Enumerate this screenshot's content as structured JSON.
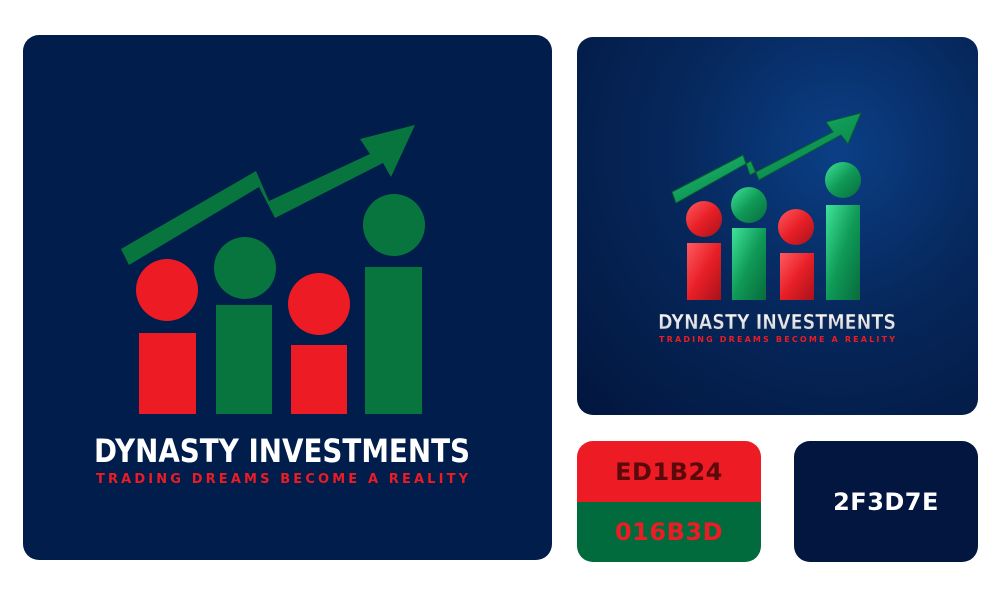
{
  "brand": {
    "name": "DYNASTY INVESTMENTS",
    "tagline": "TRADING DREAMS BECOME A REALITY"
  },
  "mockup": {
    "name": "DYNASTY INVESTMENTS",
    "tagline": "TRADING DREAMS BECOME A REALITY"
  },
  "swatches": [
    {
      "hex_label": "ED1B24",
      "color": "#ED1B24"
    },
    {
      "hex_label": "016B3D",
      "color": "#016B3D"
    },
    {
      "hex_label": "2F3D7E",
      "color": "#2F3D7E"
    }
  ],
  "colors": {
    "red": "#ED1B24",
    "green": "#016B3D",
    "navy_bg": "#001D4B",
    "text": "#FFFFFF"
  }
}
